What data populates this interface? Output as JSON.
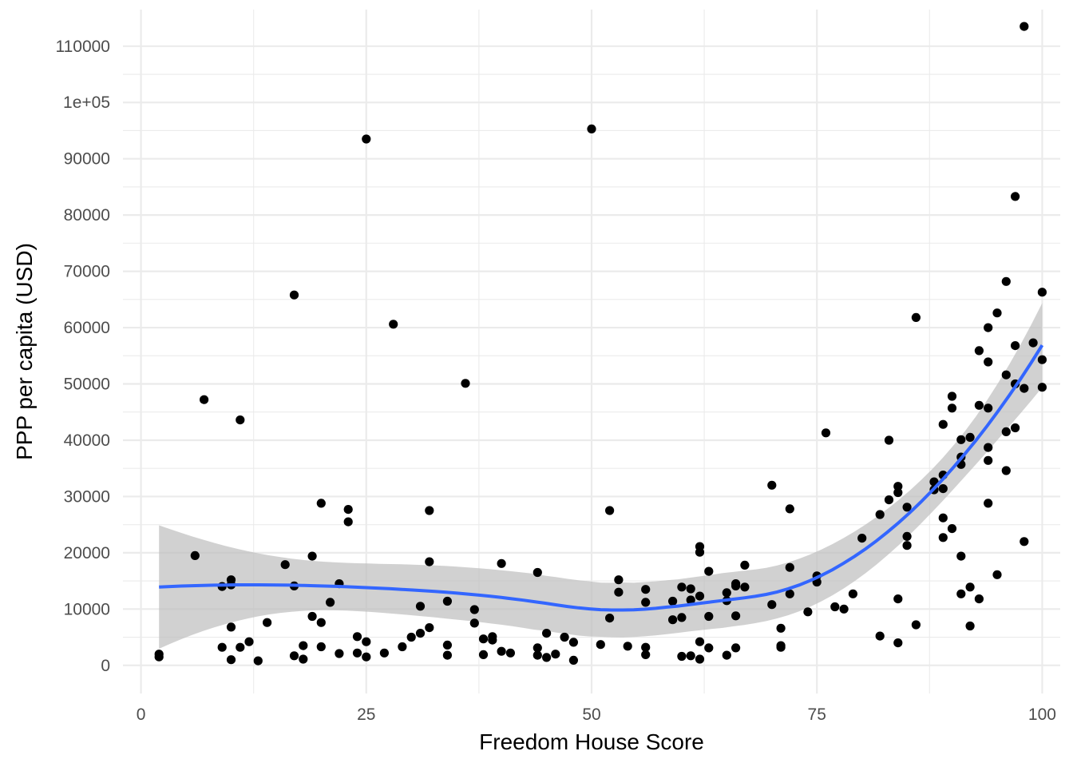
{
  "chart_data": {
    "type": "scatter",
    "xlabel": "Freedom House Score",
    "ylabel": "PPP per capita (USD)",
    "xlim": [
      -2,
      102
    ],
    "ylim": [
      -5000,
      116500
    ],
    "x_ticks": [
      0,
      25,
      50,
      75,
      100
    ],
    "x_tick_labels": [
      "0",
      "25",
      "50",
      "75",
      "100"
    ],
    "y_ticks": [
      0,
      10000,
      20000,
      30000,
      40000,
      50000,
      60000,
      70000,
      80000,
      90000,
      100000,
      110000
    ],
    "y_tick_labels": [
      "0",
      "10000",
      "20000",
      "30000",
      "40000",
      "50000",
      "60000",
      "70000",
      "80000",
      "90000",
      "1e+05",
      "110000"
    ],
    "grid": true,
    "points": [
      [
        2,
        1500
      ],
      [
        2,
        2000
      ],
      [
        6,
        19500
      ],
      [
        7,
        47200
      ],
      [
        9,
        3200
      ],
      [
        9,
        14000
      ],
      [
        10,
        1000
      ],
      [
        10,
        6800
      ],
      [
        10,
        14300
      ],
      [
        10,
        15200
      ],
      [
        11,
        43600
      ],
      [
        11,
        3200
      ],
      [
        12,
        4200
      ],
      [
        13,
        800
      ],
      [
        14,
        7600
      ],
      [
        16,
        17900
      ],
      [
        17,
        65800
      ],
      [
        17,
        1700
      ],
      [
        17,
        14100
      ],
      [
        18,
        3500
      ],
      [
        18,
        1100
      ],
      [
        19,
        19400
      ],
      [
        19,
        8700
      ],
      [
        20,
        28800
      ],
      [
        20,
        3300
      ],
      [
        20,
        7600
      ],
      [
        21,
        11200
      ],
      [
        22,
        14500
      ],
      [
        22,
        2100
      ],
      [
        23,
        27700
      ],
      [
        23,
        25500
      ],
      [
        24,
        5100
      ],
      [
        24,
        2200
      ],
      [
        25,
        93500
      ],
      [
        25,
        4200
      ],
      [
        25,
        1500
      ],
      [
        27,
        2200
      ],
      [
        28,
        60600
      ],
      [
        29,
        3300
      ],
      [
        30,
        5000
      ],
      [
        31,
        10500
      ],
      [
        31,
        5700
      ],
      [
        32,
        27500
      ],
      [
        32,
        18400
      ],
      [
        32,
        6700
      ],
      [
        34,
        11400
      ],
      [
        34,
        3600
      ],
      [
        34,
        1800
      ],
      [
        36,
        50100
      ],
      [
        37,
        9900
      ],
      [
        37,
        7500
      ],
      [
        38,
        4700
      ],
      [
        38,
        1900
      ],
      [
        39,
        5100
      ],
      [
        39,
        4500
      ],
      [
        40,
        18100
      ],
      [
        40,
        2500
      ],
      [
        41,
        2200
      ],
      [
        44,
        16500
      ],
      [
        44,
        3100
      ],
      [
        44,
        1800
      ],
      [
        45,
        5700
      ],
      [
        45,
        1400
      ],
      [
        46,
        2000
      ],
      [
        47,
        5000
      ],
      [
        48,
        4100
      ],
      [
        48,
        900
      ],
      [
        50,
        95300
      ],
      [
        51,
        3700
      ],
      [
        52,
        27500
      ],
      [
        52,
        8400
      ],
      [
        53,
        15200
      ],
      [
        53,
        13000
      ],
      [
        54,
        3400
      ],
      [
        56,
        13500
      ],
      [
        56,
        11200
      ],
      [
        56,
        3200
      ],
      [
        56,
        1900
      ],
      [
        59,
        11400
      ],
      [
        59,
        8100
      ],
      [
        60,
        13900
      ],
      [
        60,
        8500
      ],
      [
        60,
        1600
      ],
      [
        61,
        13600
      ],
      [
        61,
        11600
      ],
      [
        61,
        1700
      ],
      [
        62,
        21100
      ],
      [
        62,
        20100
      ],
      [
        62,
        12300
      ],
      [
        62,
        4200
      ],
      [
        62,
        1100
      ],
      [
        63,
        16700
      ],
      [
        63,
        8700
      ],
      [
        63,
        3100
      ],
      [
        65,
        12900
      ],
      [
        65,
        11500
      ],
      [
        65,
        1800
      ],
      [
        66,
        14500
      ],
      [
        66,
        14100
      ],
      [
        66,
        8800
      ],
      [
        66,
        3100
      ],
      [
        67,
        17800
      ],
      [
        67,
        13900
      ],
      [
        70,
        32000
      ],
      [
        70,
        10800
      ],
      [
        71,
        6600
      ],
      [
        71,
        3200
      ],
      [
        71,
        3500
      ],
      [
        72,
        27800
      ],
      [
        72,
        17400
      ],
      [
        72,
        12700
      ],
      [
        74,
        9500
      ],
      [
        75,
        15900
      ],
      [
        75,
        14800
      ],
      [
        76,
        41300
      ],
      [
        77,
        10400
      ],
      [
        78,
        10000
      ],
      [
        79,
        12700
      ],
      [
        80,
        22600
      ],
      [
        82,
        26800
      ],
      [
        82,
        5200
      ],
      [
        83,
        40000
      ],
      [
        83,
        29400
      ],
      [
        84,
        31800
      ],
      [
        84,
        30700
      ],
      [
        84,
        11800
      ],
      [
        84,
        4000
      ],
      [
        85,
        28100
      ],
      [
        85,
        22900
      ],
      [
        85,
        21300
      ],
      [
        86,
        61800
      ],
      [
        86,
        7200
      ],
      [
        88,
        32600
      ],
      [
        88,
        31200
      ],
      [
        89,
        42800
      ],
      [
        89,
        33800
      ],
      [
        89,
        31400
      ],
      [
        89,
        26200
      ],
      [
        89,
        22700
      ],
      [
        90,
        47800
      ],
      [
        90,
        45700
      ],
      [
        90,
        24300
      ],
      [
        91,
        40100
      ],
      [
        91,
        37000
      ],
      [
        91,
        35700
      ],
      [
        91,
        19400
      ],
      [
        91,
        12700
      ],
      [
        92,
        40500
      ],
      [
        92,
        13900
      ],
      [
        92,
        7000
      ],
      [
        93,
        55900
      ],
      [
        93,
        46200
      ],
      [
        93,
        11800
      ],
      [
        94,
        60000
      ],
      [
        94,
        53900
      ],
      [
        94,
        45700
      ],
      [
        94,
        38700
      ],
      [
        94,
        36400
      ],
      [
        94,
        28800
      ],
      [
        95,
        62600
      ],
      [
        95,
        16100
      ],
      [
        96,
        68200
      ],
      [
        96,
        51600
      ],
      [
        96,
        41500
      ],
      [
        96,
        34600
      ],
      [
        97,
        83300
      ],
      [
        97,
        56800
      ],
      [
        97,
        50000
      ],
      [
        97,
        42200
      ],
      [
        98,
        113500
      ],
      [
        98,
        49200
      ],
      [
        98,
        22000
      ],
      [
        99,
        57300
      ],
      [
        100,
        66300
      ],
      [
        100,
        54300
      ],
      [
        100,
        49400
      ]
    ],
    "smooth_color": "#3366FF",
    "ribbon_color": "#bebebe",
    "point_color": "#000000",
    "grid_color": "#ebebeb"
  }
}
